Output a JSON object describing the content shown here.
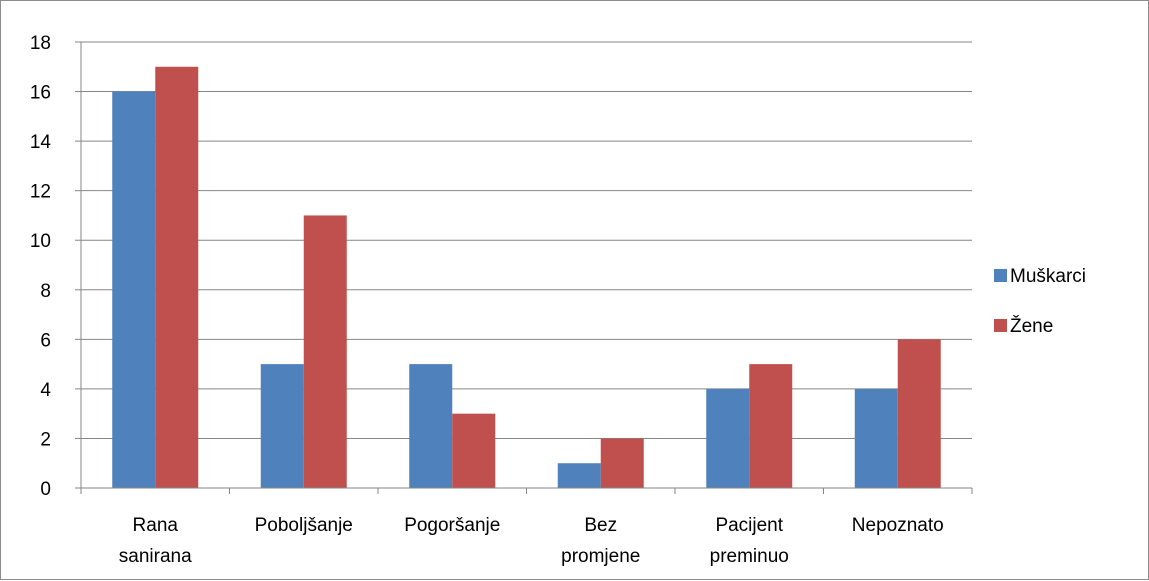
{
  "chart_data": {
    "type": "bar",
    "categories": [
      [
        "Rana",
        "sanirana"
      ],
      [
        "Poboljšanje"
      ],
      [
        "Pogoršanje"
      ],
      [
        "Bez",
        "promjene"
      ],
      [
        "Pacijent",
        "preminuo"
      ],
      [
        "Nepoznato"
      ]
    ],
    "series": [
      {
        "name": "Muškarci",
        "color": "#4f81bd",
        "values": [
          16,
          5,
          5,
          1,
          4,
          4
        ]
      },
      {
        "name": "Žene",
        "color": "#c0504d",
        "values": [
          17,
          11,
          3,
          2,
          5,
          6
        ]
      }
    ],
    "ylim": [
      0,
      18
    ],
    "yticks": [
      0,
      2,
      4,
      6,
      8,
      10,
      12,
      14,
      16,
      18
    ],
    "grid": true,
    "legend_position": "right"
  }
}
